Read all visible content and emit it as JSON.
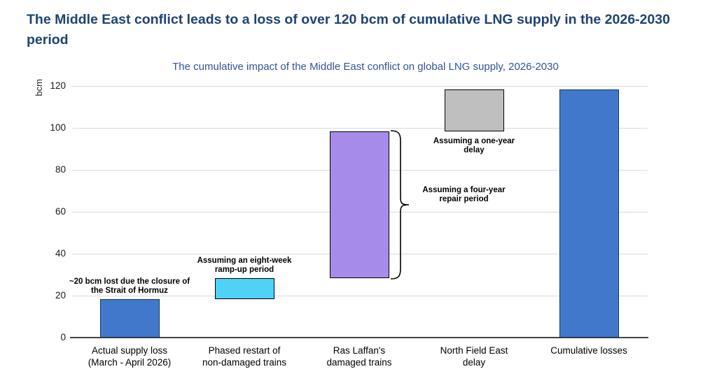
{
  "page": {
    "title": "The Middle East conflict leads to a loss of over 120 bcm of cumulative LNG supply in the 2026-2030 period"
  },
  "chart_data": {
    "type": "bar",
    "subtype": "waterfall",
    "title": "The cumulative impact of the Middle East conflict on global LNG supply, 2026-2030",
    "xlabel": "",
    "ylabel": "bcm",
    "ylim": [
      0,
      120
    ],
    "yticks": [
      0,
      20,
      40,
      60,
      80,
      100,
      120
    ],
    "grid": true,
    "categories": [
      "Actual supply loss\n(March - April 2026)",
      "Phased restart of\nnon-damaged trains",
      "Ras Laffan's\ndamaged trains",
      "North Field East\ndelay",
      "Cumulative losses"
    ],
    "bars": [
      {
        "category": "Actual supply loss (March - April 2026)",
        "start": 0,
        "end": 18.5,
        "value": 18.5,
        "color_key": "blue"
      },
      {
        "category": "Phased restart of non-damaged trains",
        "start": 18.5,
        "end": 28.5,
        "value": 10,
        "color_key": "cyan"
      },
      {
        "category": "Ras Laffan's damaged trains",
        "start": 28.5,
        "end": 98.5,
        "value": 70,
        "color_key": "purple"
      },
      {
        "category": "North Field East delay",
        "start": 98.5,
        "end": 118.5,
        "value": 20,
        "color_key": "gray"
      },
      {
        "category": "Cumulative losses",
        "start": 0,
        "end": 118.5,
        "value": 118.5,
        "color_key": "blue"
      }
    ],
    "annotations": [
      {
        "text": "~20 bcm lost due the closure of\nthe Strait of Hormuz",
        "bar_index": 0,
        "placement": "above"
      },
      {
        "text": "Assuming an eight-week\nramp-up period",
        "bar_index": 1,
        "placement": "above"
      },
      {
        "text": "Assuming a four-year\nrepair period",
        "bar_index": 2,
        "placement": "bracket-right"
      },
      {
        "text": "Assuming a one-year\ndelay",
        "bar_index": 3,
        "placement": "below"
      }
    ],
    "palette": {
      "blue": "#4278CC",
      "cyan": "#4FD2F5",
      "purple": "#A78BEA",
      "gray": "#BFBFBF"
    },
    "colors": {
      "title": "#1F4373",
      "chart_title": "#2F5597",
      "annotation": "#000000",
      "gridline": "#D9D9D9",
      "axis_line": "#444444",
      "bar_border": "#000000",
      "blue_bar_border": "#17365D"
    }
  }
}
